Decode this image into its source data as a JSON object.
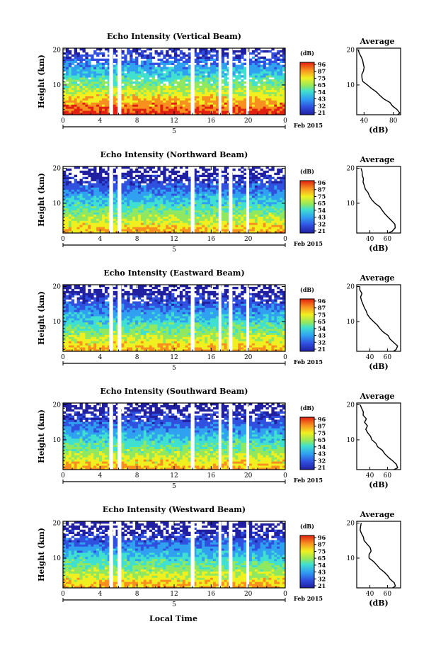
{
  "figure": {
    "date_label": "Feb 2015",
    "day_label": "5",
    "xlabel": "Local Time"
  },
  "chart_data": [
    {
      "type": "heatmap",
      "title": "Echo Intensity (Vertical Beam)",
      "ylabel": "Height (km)",
      "xlabel": "Local Time",
      "x_ticks": [
        "0",
        "4",
        "8",
        "12",
        "16",
        "20",
        "0"
      ],
      "y_ticks": [
        "10",
        "20"
      ],
      "xlim": [
        0,
        24
      ],
      "ylim": [
        1.5,
        20.5
      ],
      "colorbar": {
        "label": "(dB)",
        "ticks": [
          "96",
          "87",
          "75",
          "65",
          "54",
          "43",
          "32",
          "21"
        ],
        "range": [
          21,
          96
        ]
      },
      "data_gaps_hours": [
        [
          5.0,
          5.4
        ],
        [
          5.9,
          6.3
        ],
        [
          13.8,
          14.2
        ],
        [
          16.8,
          17.1
        ],
        [
          17.9,
          18.3
        ],
        [
          19.8,
          20.1
        ]
      ],
      "average_profile": {
        "title": "Average",
        "xlabel": "(dB)",
        "x_ticks": [
          "40",
          "80"
        ],
        "xlim": [
          30,
          90
        ],
        "height_km": [
          1.5,
          2,
          3,
          4,
          5,
          6,
          7,
          8,
          9,
          10,
          11,
          12,
          13,
          14,
          15,
          16,
          17,
          18,
          19,
          20
        ],
        "db": [
          86,
          90,
          85,
          80,
          74,
          68,
          62,
          56,
          50,
          44,
          38,
          36,
          38,
          40,
          41,
          39,
          37,
          35,
          33,
          32
        ]
      }
    },
    {
      "type": "heatmap",
      "title": "Echo Intensity (Northward Beam)",
      "ylabel": "Height (km)",
      "xlabel": "Local Time",
      "x_ticks": [
        "0",
        "4",
        "8",
        "12",
        "16",
        "20",
        "0"
      ],
      "y_ticks": [
        "10",
        "20"
      ],
      "xlim": [
        0,
        24
      ],
      "ylim": [
        1.5,
        20.5
      ],
      "colorbar": {
        "label": "(dB)",
        "ticks": [
          "96",
          "87",
          "75",
          "65",
          "54",
          "43",
          "32",
          "21"
        ],
        "range": [
          21,
          96
        ]
      },
      "data_gaps_hours": [
        [
          5.0,
          5.4
        ],
        [
          5.9,
          6.3
        ],
        [
          13.8,
          14.2
        ],
        [
          16.8,
          17.1
        ],
        [
          17.9,
          18.3
        ],
        [
          19.8,
          20.1
        ]
      ],
      "average_profile": {
        "title": "Average",
        "xlabel": "(dB)",
        "x_ticks": [
          "40",
          "60"
        ],
        "xlim": [
          25,
          75
        ],
        "height_km": [
          1.5,
          2,
          3,
          4,
          5,
          6,
          7,
          8,
          9,
          10,
          11,
          12,
          13,
          14,
          15,
          16,
          17,
          18,
          19,
          20
        ],
        "db": [
          62,
          66,
          70,
          68,
          66,
          62,
          58,
          54,
          50,
          46,
          42,
          40,
          37,
          35,
          34,
          33,
          32,
          31,
          30,
          30
        ]
      }
    },
    {
      "type": "heatmap",
      "title": "Echo Intensity (Eastward Beam)",
      "ylabel": "Height (km)",
      "xlabel": "Local Time",
      "x_ticks": [
        "0",
        "4",
        "8",
        "12",
        "16",
        "20",
        "0"
      ],
      "y_ticks": [
        "10",
        "20"
      ],
      "xlim": [
        0,
        24
      ],
      "ylim": [
        1.5,
        20.5
      ],
      "colorbar": {
        "label": "(dB)",
        "ticks": [
          "96",
          "87",
          "75",
          "65",
          "54",
          "43",
          "32",
          "21"
        ],
        "range": [
          21,
          96
        ]
      },
      "data_gaps_hours": [
        [
          5.0,
          5.4
        ],
        [
          5.9,
          6.3
        ],
        [
          13.8,
          14.2
        ],
        [
          16.8,
          17.1
        ],
        [
          17.9,
          18.3
        ],
        [
          19.8,
          20.1
        ]
      ],
      "average_profile": {
        "title": "Average",
        "xlabel": "(dB)",
        "x_ticks": [
          "40",
          "60"
        ],
        "xlim": [
          25,
          75
        ],
        "height_km": [
          1.5,
          2,
          3,
          4,
          5,
          6,
          7,
          8,
          9,
          10,
          11,
          12,
          13,
          14,
          15,
          16,
          17,
          18,
          19,
          20
        ],
        "db": [
          66,
          70,
          72,
          68,
          64,
          60,
          56,
          52,
          48,
          44,
          40,
          38,
          36,
          34,
          32,
          31,
          30,
          30,
          29,
          28
        ]
      }
    },
    {
      "type": "heatmap",
      "title": "Echo Intensity (Southward Beam)",
      "ylabel": "Height (km)",
      "xlabel": "Local Time",
      "x_ticks": [
        "0",
        "4",
        "8",
        "12",
        "16",
        "20",
        "0"
      ],
      "y_ticks": [
        "10",
        "20"
      ],
      "xlim": [
        0,
        24
      ],
      "ylim": [
        1.5,
        20.5
      ],
      "colorbar": {
        "label": "(dB)",
        "ticks": [
          "96",
          "87",
          "75",
          "65",
          "54",
          "43",
          "32",
          "21"
        ],
        "range": [
          21,
          96
        ]
      },
      "data_gaps_hours": [
        [
          5.0,
          5.4
        ],
        [
          5.9,
          6.3
        ],
        [
          13.8,
          14.2
        ],
        [
          16.8,
          17.1
        ],
        [
          17.9,
          18.3
        ],
        [
          19.8,
          20.1
        ]
      ],
      "average_profile": {
        "title": "Average",
        "xlabel": "(dB)",
        "x_ticks": [
          "40",
          "60"
        ],
        "xlim": [
          25,
          75
        ],
        "height_km": [
          1.5,
          2,
          3,
          4,
          5,
          6,
          7,
          8,
          9,
          10,
          11,
          12,
          13,
          14,
          15,
          16,
          17,
          18,
          19,
          20
        ],
        "db": [
          68,
          72,
          70,
          66,
          62,
          58,
          54,
          50,
          46,
          42,
          40,
          38,
          36,
          38,
          34,
          36,
          33,
          32,
          31,
          30
        ]
      }
    },
    {
      "type": "heatmap",
      "title": "Echo Intensity (Westward Beam)",
      "ylabel": "Height (km)",
      "xlabel": "Local Time",
      "x_ticks": [
        "0",
        "4",
        "8",
        "12",
        "16",
        "20",
        "0"
      ],
      "y_ticks": [
        "10",
        "20"
      ],
      "xlim": [
        0,
        24
      ],
      "ylim": [
        1.5,
        20.5
      ],
      "colorbar": {
        "label": "(dB)",
        "ticks": [
          "96",
          "87",
          "75",
          "65",
          "54",
          "43",
          "32",
          "21"
        ],
        "range": [
          21,
          96
        ]
      },
      "data_gaps_hours": [
        [
          5.0,
          5.4
        ],
        [
          5.9,
          6.3
        ],
        [
          13.8,
          14.2
        ],
        [
          16.8,
          17.1
        ],
        [
          17.9,
          18.3
        ],
        [
          19.8,
          20.1
        ]
      ],
      "average_profile": {
        "title": "Average",
        "xlabel": "(dB)",
        "x_ticks": [
          "40",
          "60"
        ],
        "xlim": [
          25,
          75
        ],
        "height_km": [
          1.5,
          2,
          3,
          4,
          5,
          6,
          7,
          8,
          9,
          10,
          11,
          12,
          13,
          14,
          15,
          16,
          17,
          18,
          19,
          20
        ],
        "db": [
          66,
          70,
          68,
          64,
          60,
          56,
          52,
          48,
          44,
          40,
          38,
          42,
          40,
          36,
          34,
          32,
          31,
          30,
          30,
          29
        ]
      }
    }
  ]
}
